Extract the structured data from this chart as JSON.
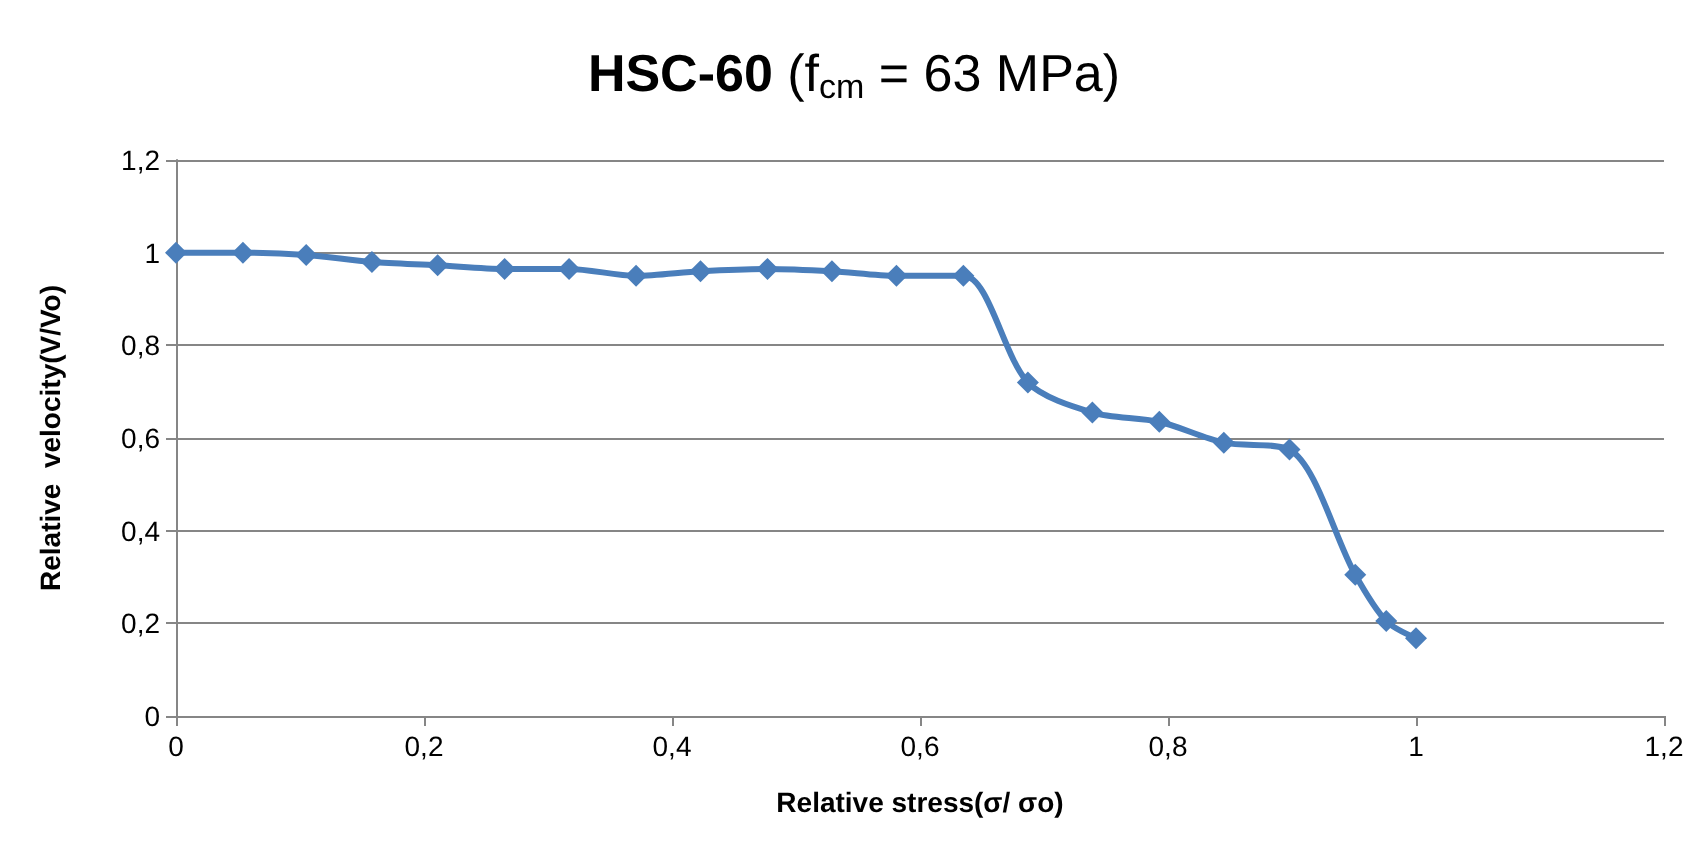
{
  "chart_data": {
    "type": "line",
    "title": "HSC-60 (f$_{cm}$ = 63 MPa)",
    "xlabel": "Relative stress(σ/ σo)",
    "ylabel": "Relative  velocity(V/Vo)",
    "x": [
      0,
      0.054,
      0.105,
      0.158,
      0.211,
      0.265,
      0.317,
      0.371,
      0.423,
      0.477,
      0.529,
      0.581,
      0.635,
      0.687,
      0.739,
      0.793,
      0.845,
      0.898,
      0.951,
      0.976,
      1.0
    ],
    "series": [
      {
        "color": "#4a7ebb",
        "values": [
          1.0,
          1.0,
          0.995,
          0.98,
          0.973,
          0.965,
          0.965,
          0.95,
          0.96,
          0.965,
          0.96,
          0.95,
          0.95,
          0.72,
          0.655,
          0.635,
          0.59,
          0.575,
          0.305,
          0.205,
          0.168
        ]
      }
    ],
    "xlim": [
      0,
      1.2
    ],
    "xticks": [
      0,
      {
        "value": 0.2,
        "label": "0,2"
      },
      {
        "value": 0.4,
        "label": "0,4"
      },
      {
        "value": 0.6,
        "label": "0,6"
      },
      {
        "value": 0.8,
        "label": "0,8"
      },
      1,
      {
        "value": 1.2,
        "label": "1,2"
      }
    ],
    "ylim": [
      0,
      1.2
    ],
    "yticks": [
      0,
      {
        "value": 0.2,
        "label": "0,2"
      },
      {
        "value": 0.4,
        "label": "0,4"
      },
      {
        "value": 0.6,
        "label": "0,6"
      },
      {
        "value": 0.8,
        "label": "0,8"
      },
      1,
      {
        "value": 1.2,
        "label": "1,2"
      }
    ],
    "grid": "y",
    "marker": "diamond",
    "line_style": "solid"
  }
}
